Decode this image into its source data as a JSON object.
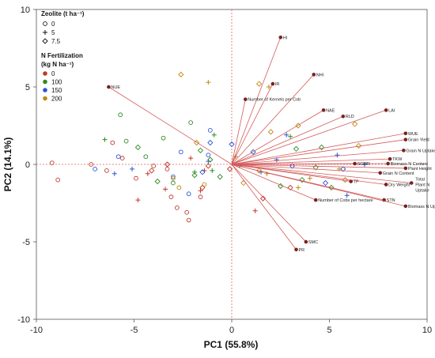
{
  "chart_data": {
    "type": "scatter",
    "subtype": "pca-biplot",
    "xlabel": "PC1 (55.8%)",
    "ylabel": "PC2 (14.1%)",
    "xlim": [
      -10,
      10
    ],
    "ylim": [
      -10,
      10
    ],
    "xticks": [
      "-10",
      "-5",
      "0",
      "5",
      "10"
    ],
    "yticks": [
      "10",
      "5",
      "0",
      "-5",
      "-10"
    ],
    "grid": false,
    "origin_guides": "dotted red lines at x=0 and y=0",
    "legend": {
      "placement": "top-left",
      "shape_title": "Zeolite (t ha⁻¹)",
      "shapes": [
        {
          "label": "0",
          "marker": "circle"
        },
        {
          "label": "5",
          "marker": "plus"
        },
        {
          "label": "7.5",
          "marker": "diamond"
        }
      ],
      "color_title_line1": "N Fertilization",
      "color_title_line2": "(kg N ha⁻¹)",
      "colors": [
        {
          "label": "0",
          "color": "#c0392b"
        },
        {
          "label": "100",
          "color": "#2e8b22"
        },
        {
          "label": "150",
          "color": "#2a55d6"
        },
        {
          "label": "200",
          "color": "#c08a10"
        }
      ]
    },
    "vector_color": "#d45a5a",
    "loadings": [
      {
        "label": "HI",
        "x": 2.5,
        "y": 8.2
      },
      {
        "label": "NHI",
        "x": 4.2,
        "y": 5.8
      },
      {
        "label": "IR",
        "x": 2.1,
        "y": 5.2
      },
      {
        "label": "NUE",
        "x": -6.3,
        "y": 5.0
      },
      {
        "label": "Number of Kernels per Cob",
        "x": 0.7,
        "y": 4.2
      },
      {
        "label": "NAE",
        "x": 4.7,
        "y": 3.5
      },
      {
        "label": "RLD",
        "x": 5.7,
        "y": 3.1
      },
      {
        "label": "LAI",
        "x": 7.9,
        "y": 3.5
      },
      {
        "label": "WUE",
        "x": 8.9,
        "y": 2.0
      },
      {
        "label": "Grain Yield",
        "x": 8.9,
        "y": 1.6
      },
      {
        "label": "Grain N Uptake",
        "x": 8.8,
        "y": 0.9
      },
      {
        "label": "TKW",
        "x": 8.1,
        "y": 0.35
      },
      {
        "label": "Biomass N Content",
        "x": 8.0,
        "y": 0.05
      },
      {
        "label": "SCMR",
        "x": 6.3,
        "y": 0.05
      },
      {
        "label": "Plant Height",
        "x": 8.9,
        "y": -0.25
      },
      {
        "label": "Grain N Content",
        "x": 7.6,
        "y": -0.55
      },
      {
        "label": "TP",
        "x": 6.1,
        "y": -1.1
      },
      {
        "label": "Dry Weight",
        "x": 7.9,
        "y": -1.3
      },
      {
        "label": "Total Plant N Uptake",
        "x": 9.2,
        "y": -1.2
      },
      {
        "label": "STN",
        "x": 7.8,
        "y": -2.3
      },
      {
        "label": "Biomass N Uptake",
        "x": 8.9,
        "y": -2.7
      },
      {
        "label": "Number of Cobs per hectare",
        "x": 4.3,
        "y": -2.3
      },
      {
        "label": "SMC",
        "x": 3.8,
        "y": -5.0
      },
      {
        "label": "PR",
        "x": 3.3,
        "y": -5.5
      }
    ],
    "series": [
      {
        "zeolite": "0",
        "n": "0",
        "marker": "circle",
        "color": "#c0392b",
        "points": [
          [
            -9.2,
            0.1
          ],
          [
            -7.2,
            0.0
          ],
          [
            -6.4,
            -0.4
          ],
          [
            -5.6,
            0.4
          ],
          [
            -4.0,
            -0.1
          ],
          [
            -3.1,
            -2.1
          ],
          [
            -2.8,
            -2.8
          ],
          [
            -2.3,
            -3.1
          ],
          [
            -1.6,
            -2.1
          ],
          [
            -6.1,
            1.4
          ],
          [
            -3.3,
            -0.3
          ],
          [
            -2.2,
            -3.6
          ],
          [
            -4.9,
            -0.9
          ],
          [
            -8.9,
            -1.0
          ]
        ]
      },
      {
        "zeolite": "0",
        "n": "100",
        "marker": "circle",
        "color": "#2e8b22",
        "points": [
          [
            -5.4,
            1.5
          ],
          [
            -5.7,
            3.2
          ],
          [
            -3.5,
            1.7
          ],
          [
            -2.1,
            2.7
          ],
          [
            -4.4,
            0.5
          ],
          [
            -3.0,
            -1.2
          ]
        ]
      },
      {
        "zeolite": "0",
        "n": "150",
        "marker": "circle",
        "color": "#2a55d6",
        "points": [
          [
            -7.0,
            -0.3
          ],
          [
            -5.8,
            0.5
          ],
          [
            -2.6,
            0.8
          ],
          [
            -1.2,
            0.6
          ],
          [
            -3.0,
            -0.8
          ],
          [
            -2.2,
            -1.9
          ],
          [
            -1.1,
            2.2
          ]
        ]
      },
      {
        "zeolite": "0",
        "n": "200",
        "marker": "circle",
        "color": "#c08a10",
        "points": [
          [
            -3.0,
            -0.9
          ],
          [
            -2.7,
            -1.5
          ],
          [
            -1.4,
            -1.3
          ]
        ]
      },
      {
        "zeolite": "5",
        "n": "0",
        "marker": "plus",
        "color": "#c0392b",
        "points": [
          [
            -4.8,
            -2.3
          ],
          [
            -3.4,
            -1.6
          ],
          [
            -2.1,
            0.4
          ],
          [
            -1.4,
            -0.4
          ],
          [
            1.2,
            -3.0
          ],
          [
            -1.6,
            -1.7
          ],
          [
            -4.3,
            -0.6
          ]
        ]
      },
      {
        "zeolite": "5",
        "n": "100",
        "marker": "plus",
        "color": "#2e8b22",
        "points": [
          [
            -6.5,
            1.6
          ],
          [
            -1.9,
            -0.5
          ],
          [
            -0.9,
            1.9
          ],
          [
            -1.0,
            -0.4
          ],
          [
            3.0,
            1.8
          ],
          [
            0.4,
            -0.1
          ]
        ]
      },
      {
        "zeolite": "5",
        "n": "150",
        "marker": "plus",
        "color": "#2a55d6",
        "points": [
          [
            -6.0,
            -0.6
          ],
          [
            -5.1,
            -0.3
          ],
          [
            -1.2,
            0.2
          ],
          [
            1.5,
            -0.5
          ],
          [
            2.8,
            1.9
          ],
          [
            5.4,
            0.6
          ],
          [
            2.3,
            0.3
          ],
          [
            6.8,
            0.0
          ],
          [
            5.9,
            -2.0
          ]
        ]
      },
      {
        "zeolite": "5",
        "n": "200",
        "marker": "plus",
        "color": "#c08a10",
        "points": [
          [
            -1.2,
            5.3
          ],
          [
            1.9,
            5.0
          ],
          [
            0.2,
            0.5
          ],
          [
            1.8,
            -0.6
          ],
          [
            4.0,
            -0.9
          ],
          [
            3.4,
            -1.5
          ],
          [
            5.5,
            -0.3
          ]
        ]
      },
      {
        "zeolite": "7.5",
        "n": "0",
        "marker": "diamond",
        "color": "#c0392b",
        "points": [
          [
            -3.3,
            0.0
          ],
          [
            -4.1,
            -0.4
          ],
          [
            -1.2,
            -0.1
          ],
          [
            3.0,
            -1.5
          ],
          [
            1.6,
            -2.2
          ],
          [
            -0.1,
            -0.3
          ],
          [
            -1.5,
            -1.5
          ]
        ]
      },
      {
        "zeolite": "7.5",
        "n": "100",
        "marker": "diamond",
        "color": "#2e8b22",
        "points": [
          [
            -4.8,
            1.1
          ],
          [
            -3.8,
            -1.1
          ],
          [
            -1.6,
            0.9
          ],
          [
            -1.1,
            0.3
          ],
          [
            -0.6,
            -0.8
          ],
          [
            -1.9,
            -0.7
          ],
          [
            3.3,
            1.0
          ],
          [
            4.6,
            1.1
          ],
          [
            3.6,
            -1.0
          ],
          [
            4.3,
            -0.2
          ],
          [
            5.1,
            -1.5
          ],
          [
            2.5,
            -1.4
          ]
        ]
      },
      {
        "zeolite": "7.5",
        "n": "150",
        "marker": "diamond",
        "color": "#2a55d6",
        "points": [
          [
            -1.1,
            1.4
          ],
          [
            -1.5,
            -0.5
          ],
          [
            0.0,
            1.3
          ],
          [
            3.1,
            -0.1
          ],
          [
            1.1,
            0.8
          ],
          [
            5.7,
            -0.3
          ],
          [
            4.8,
            -1.2
          ]
        ]
      },
      {
        "zeolite": "7.5",
        "n": "200",
        "marker": "diamond",
        "color": "#c08a10",
        "points": [
          [
            -2.6,
            5.8
          ],
          [
            -1.8,
            1.4
          ],
          [
            1.4,
            5.2
          ],
          [
            1.4,
            -0.4
          ],
          [
            3.4,
            2.5
          ],
          [
            5.8,
            -1.0
          ],
          [
            6.3,
            2.6
          ],
          [
            6.5,
            1.2
          ],
          [
            2.0,
            2.1
          ],
          [
            0.6,
            -1.2
          ]
        ]
      }
    ]
  }
}
